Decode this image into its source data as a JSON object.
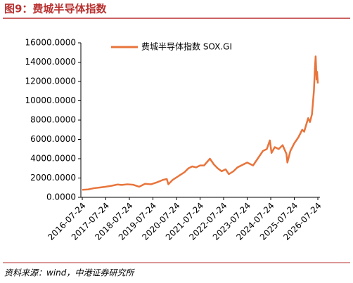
{
  "title": "图9：费城半导体指数",
  "source": "资料来源：wind，中港证券研究所",
  "chart_data": {
    "type": "line",
    "x": [
      "2016-07-24",
      "2016-10-24",
      "2017-01-24",
      "2017-04-24",
      "2017-07-24",
      "2017-10-24",
      "2018-01-24",
      "2018-03-24",
      "2018-06-24",
      "2018-09-24",
      "2018-12-24",
      "2019-03-24",
      "2019-06-24",
      "2019-09-24",
      "2019-12-24",
      "2020-02-24",
      "2020-03-20",
      "2020-05-24",
      "2020-08-24",
      "2020-11-24",
      "2021-01-24",
      "2021-03-24",
      "2021-05-24",
      "2021-07-24",
      "2021-09-24",
      "2021-12-24",
      "2022-02-24",
      "2022-04-24",
      "2022-06-24",
      "2022-08-24",
      "2022-10-14",
      "2022-12-24",
      "2023-02-24",
      "2023-05-24",
      "2023-07-24",
      "2023-10-24",
      "2023-12-24",
      "2024-03-24",
      "2024-05-24",
      "2024-07-10",
      "2024-08-05",
      "2024-09-24",
      "2024-11-24",
      "2025-01-24",
      "2025-03-24",
      "2025-04-08",
      "2025-05-24",
      "2025-07-24",
      "2025-09-24",
      "2025-11-24",
      "2025-12-24",
      "2026-02-24",
      "2026-03-24",
      "2026-04-24",
      "2026-05-24",
      "2026-06-10",
      "2026-06-20",
      "2026-07-05",
      "2026-07-12",
      "2026-07-24"
    ],
    "series": [
      {
        "name": "费城半导体指数 SOX.GI",
        "color": "#e8743b",
        "values": [
          780,
          820,
          950,
          1020,
          1100,
          1200,
          1330,
          1280,
          1350,
          1300,
          1100,
          1400,
          1350,
          1550,
          1800,
          1900,
          1350,
          1800,
          2200,
          2600,
          3000,
          3200,
          3100,
          3300,
          3300,
          4000,
          3400,
          3000,
          2700,
          2900,
          2400,
          2700,
          3100,
          3400,
          3600,
          3300,
          3900,
          4800,
          5000,
          5900,
          4600,
          5200,
          5000,
          5400,
          4500,
          3600,
          4800,
          5600,
          6200,
          7000,
          6800,
          8200,
          7800,
          8600,
          11000,
          13500,
          14600,
          12200,
          13000,
          11800
        ]
      }
    ],
    "xlim": [
      "2016-07-24",
      "2026-07-24"
    ],
    "xticks": [
      "2016-07-24",
      "2017-07-24",
      "2018-07-24",
      "2019-07-24",
      "2020-07-24",
      "2021-07-24",
      "2022-07-24",
      "2023-07-24",
      "2024-07-24",
      "2025-07-24",
      "2026-07-24"
    ],
    "ylim": [
      0,
      16000
    ],
    "yticks": [
      {
        "value": 0,
        "label": "0.0000"
      },
      {
        "value": 2000,
        "label": "2000.0000"
      },
      {
        "value": 4000,
        "label": "4000.0000"
      },
      {
        "value": 6000,
        "label": "6000.0000"
      },
      {
        "value": 8000,
        "label": "8000.0000"
      },
      {
        "value": 10000,
        "label": "10000.0000"
      },
      {
        "value": 12000,
        "label": "12000.0000"
      },
      {
        "value": 14000,
        "label": "14000.0000"
      },
      {
        "value": 16000,
        "label": "16000.0000"
      }
    ],
    "grid": false
  }
}
